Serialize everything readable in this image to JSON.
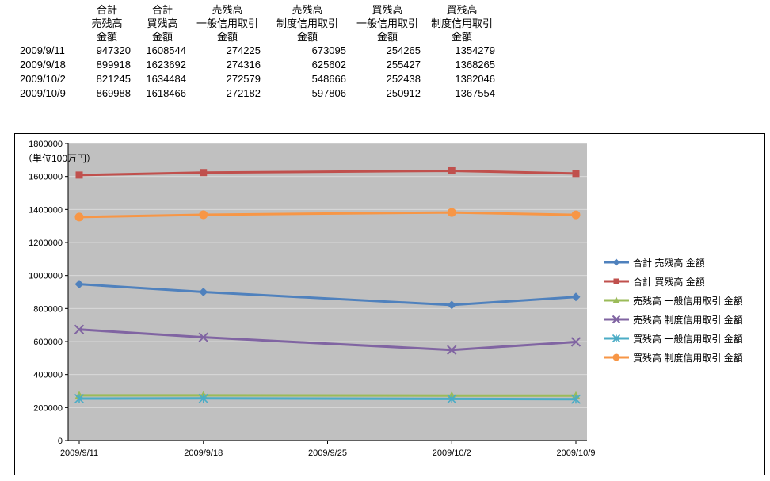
{
  "table": {
    "headers": [
      [
        "合計",
        "売残高",
        "金額"
      ],
      [
        "合計",
        "買残高",
        "金額"
      ],
      [
        "売残高",
        "一般信用取引",
        "金額"
      ],
      [
        "売残高",
        "制度信用取引",
        "金額"
      ],
      [
        "買残高",
        "一般信用取引",
        "金額"
      ],
      [
        "買残高",
        "制度信用取引",
        "金額"
      ]
    ],
    "rows": [
      {
        "date": "2009/9/11",
        "values": [
          "947320",
          "1608544",
          "274225",
          "673095",
          "254265",
          "1354279"
        ]
      },
      {
        "date": "2009/9/18",
        "values": [
          "899918",
          "1623692",
          "274316",
          "625602",
          "255427",
          "1368265"
        ]
      },
      {
        "date": "2009/10/2",
        "values": [
          "821245",
          "1634484",
          "272579",
          "548666",
          "252438",
          "1382046"
        ]
      },
      {
        "date": "2009/10/9",
        "values": [
          "869988",
          "1618466",
          "272182",
          "597806",
          "250912",
          "1367554"
        ]
      }
    ]
  },
  "chart_data": {
    "type": "line",
    "title": "",
    "unit_label": "（単位100万円）",
    "x_axis_categories": [
      "2009/9/11",
      "2009/9/18",
      "2009/9/25",
      "2009/10/2",
      "2009/10/9"
    ],
    "x_positions": [
      0,
      1,
      3,
      4
    ],
    "ylim": [
      0,
      1800000
    ],
    "ytick_step": 200000,
    "grid": true,
    "legend_position": "right",
    "plot_bg": "#C0C0C0",
    "grid_color": "#D9D9D9",
    "axis_color": "#000000",
    "series": [
      {
        "name": "合計 売残高 金額",
        "color": "#4F81BD",
        "marker": "diamond",
        "values": [
          947320,
          899918,
          821245,
          869988
        ]
      },
      {
        "name": "合計 買残高 金額",
        "color": "#C0504D",
        "marker": "square",
        "values": [
          1608544,
          1623692,
          1634484,
          1618466
        ]
      },
      {
        "name": "売残高 一般信用取引 金額",
        "color": "#9BBB59",
        "marker": "triangle",
        "values": [
          274225,
          274316,
          272579,
          272182
        ]
      },
      {
        "name": "売残高 制度信用取引 金額",
        "color": "#8064A2",
        "marker": "x",
        "values": [
          673095,
          625602,
          548666,
          597806
        ]
      },
      {
        "name": "買残高 一般信用取引 金額",
        "color": "#4BACC6",
        "marker": "asterisk",
        "values": [
          254265,
          255427,
          252438,
          250912
        ]
      },
      {
        "name": "買残高 制度信用取引 金額",
        "color": "#F79646",
        "marker": "circle",
        "values": [
          1354279,
          1368265,
          1382046,
          1367554
        ]
      }
    ]
  }
}
